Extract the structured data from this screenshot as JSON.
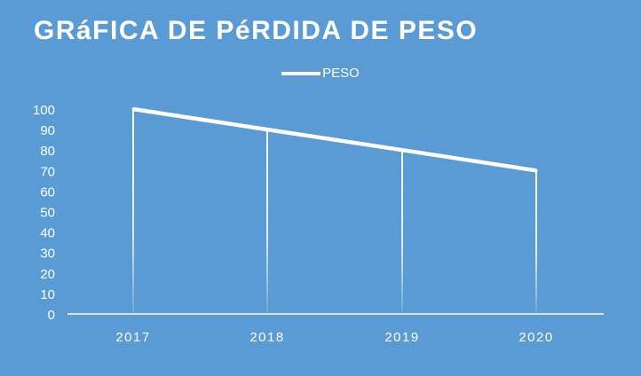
{
  "chart_data": {
    "type": "line",
    "title": "GRáFICA DE PéRDIDA DE PESO",
    "categories": [
      "2017",
      "2018",
      "2019",
      "2020"
    ],
    "series": [
      {
        "name": "PESO",
        "values": [
          100,
          90,
          80,
          70
        ]
      }
    ],
    "yticks": [
      0,
      10,
      20,
      30,
      40,
      50,
      60,
      70,
      80,
      90,
      100
    ],
    "ylim": [
      0,
      100
    ],
    "xlabel": "",
    "ylabel": "",
    "legend": "top-center",
    "grid": false,
    "drop_lines": true,
    "colors": {
      "background": "#5b9bd5",
      "line": "#ffffff"
    }
  }
}
